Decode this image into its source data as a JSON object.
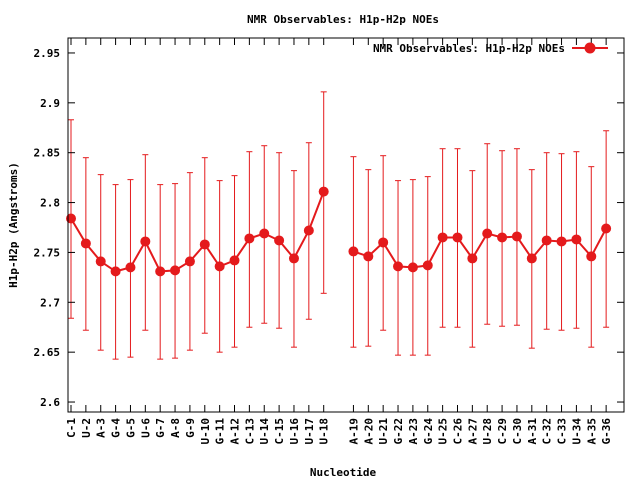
{
  "chart_data": {
    "type": "line",
    "title": "NMR Observables: H1p-H2p NOEs",
    "xlabel": "Nucleotide",
    "ylabel": "H1p-H2p (Angstroms)",
    "ylim": [
      2.59,
      2.965
    ],
    "yticks": [
      "2.6",
      "2.65",
      "2.7",
      "2.75",
      "2.8",
      "2.85",
      "2.9",
      "2.95"
    ],
    "ytick_values": [
      2.6,
      2.65,
      2.7,
      2.75,
      2.8,
      2.85,
      2.9,
      2.95
    ],
    "grid": false,
    "legend_position": "top-right",
    "series": [
      {
        "name": "NMR Observables: H1p-H2p NOEs",
        "color": "#e41a1c",
        "gap_after_index": 17,
        "categories": [
          "C-1",
          "U-2",
          "A-3",
          "G-4",
          "G-5",
          "U-6",
          "G-7",
          "A-8",
          "G-9",
          "U-10",
          "G-11",
          "A-12",
          "C-13",
          "U-14",
          "C-15",
          "U-16",
          "U-17",
          "U-18",
          "A-19",
          "A-20",
          "U-21",
          "G-22",
          "A-23",
          "G-24",
          "U-25",
          "C-26",
          "A-27",
          "U-28",
          "C-29",
          "C-30",
          "A-31",
          "C-32",
          "C-33",
          "U-34",
          "A-35",
          "G-36"
        ],
        "values": [
          2.784,
          2.759,
          2.741,
          2.731,
          2.735,
          2.761,
          2.731,
          2.732,
          2.741,
          2.758,
          2.736,
          2.742,
          2.764,
          2.769,
          2.762,
          2.744,
          2.772,
          2.811,
          2.751,
          2.746,
          2.76,
          2.736,
          2.735,
          2.737,
          2.765,
          2.765,
          2.744,
          2.769,
          2.765,
          2.766,
          2.744,
          2.762,
          2.761,
          2.763,
          2.746,
          2.774
        ],
        "err_high": [
          2.883,
          2.845,
          2.828,
          2.818,
          2.823,
          2.848,
          2.818,
          2.819,
          2.83,
          2.845,
          2.822,
          2.827,
          2.851,
          2.857,
          2.85,
          2.832,
          2.86,
          2.911,
          2.846,
          2.833,
          2.847,
          2.822,
          2.823,
          2.826,
          2.854,
          2.854,
          2.832,
          2.859,
          2.852,
          2.854,
          2.833,
          2.85,
          2.849,
          2.851,
          2.836,
          2.872
        ],
        "err_low": [
          2.684,
          2.672,
          2.652,
          2.643,
          2.645,
          2.672,
          2.643,
          2.644,
          2.652,
          2.669,
          2.65,
          2.655,
          2.675,
          2.679,
          2.674,
          2.655,
          2.683,
          2.709,
          2.655,
          2.656,
          2.672,
          2.647,
          2.647,
          2.647,
          2.675,
          2.675,
          2.655,
          2.678,
          2.676,
          2.677,
          2.654,
          2.673,
          2.672,
          2.674,
          2.655,
          2.675
        ]
      }
    ]
  }
}
